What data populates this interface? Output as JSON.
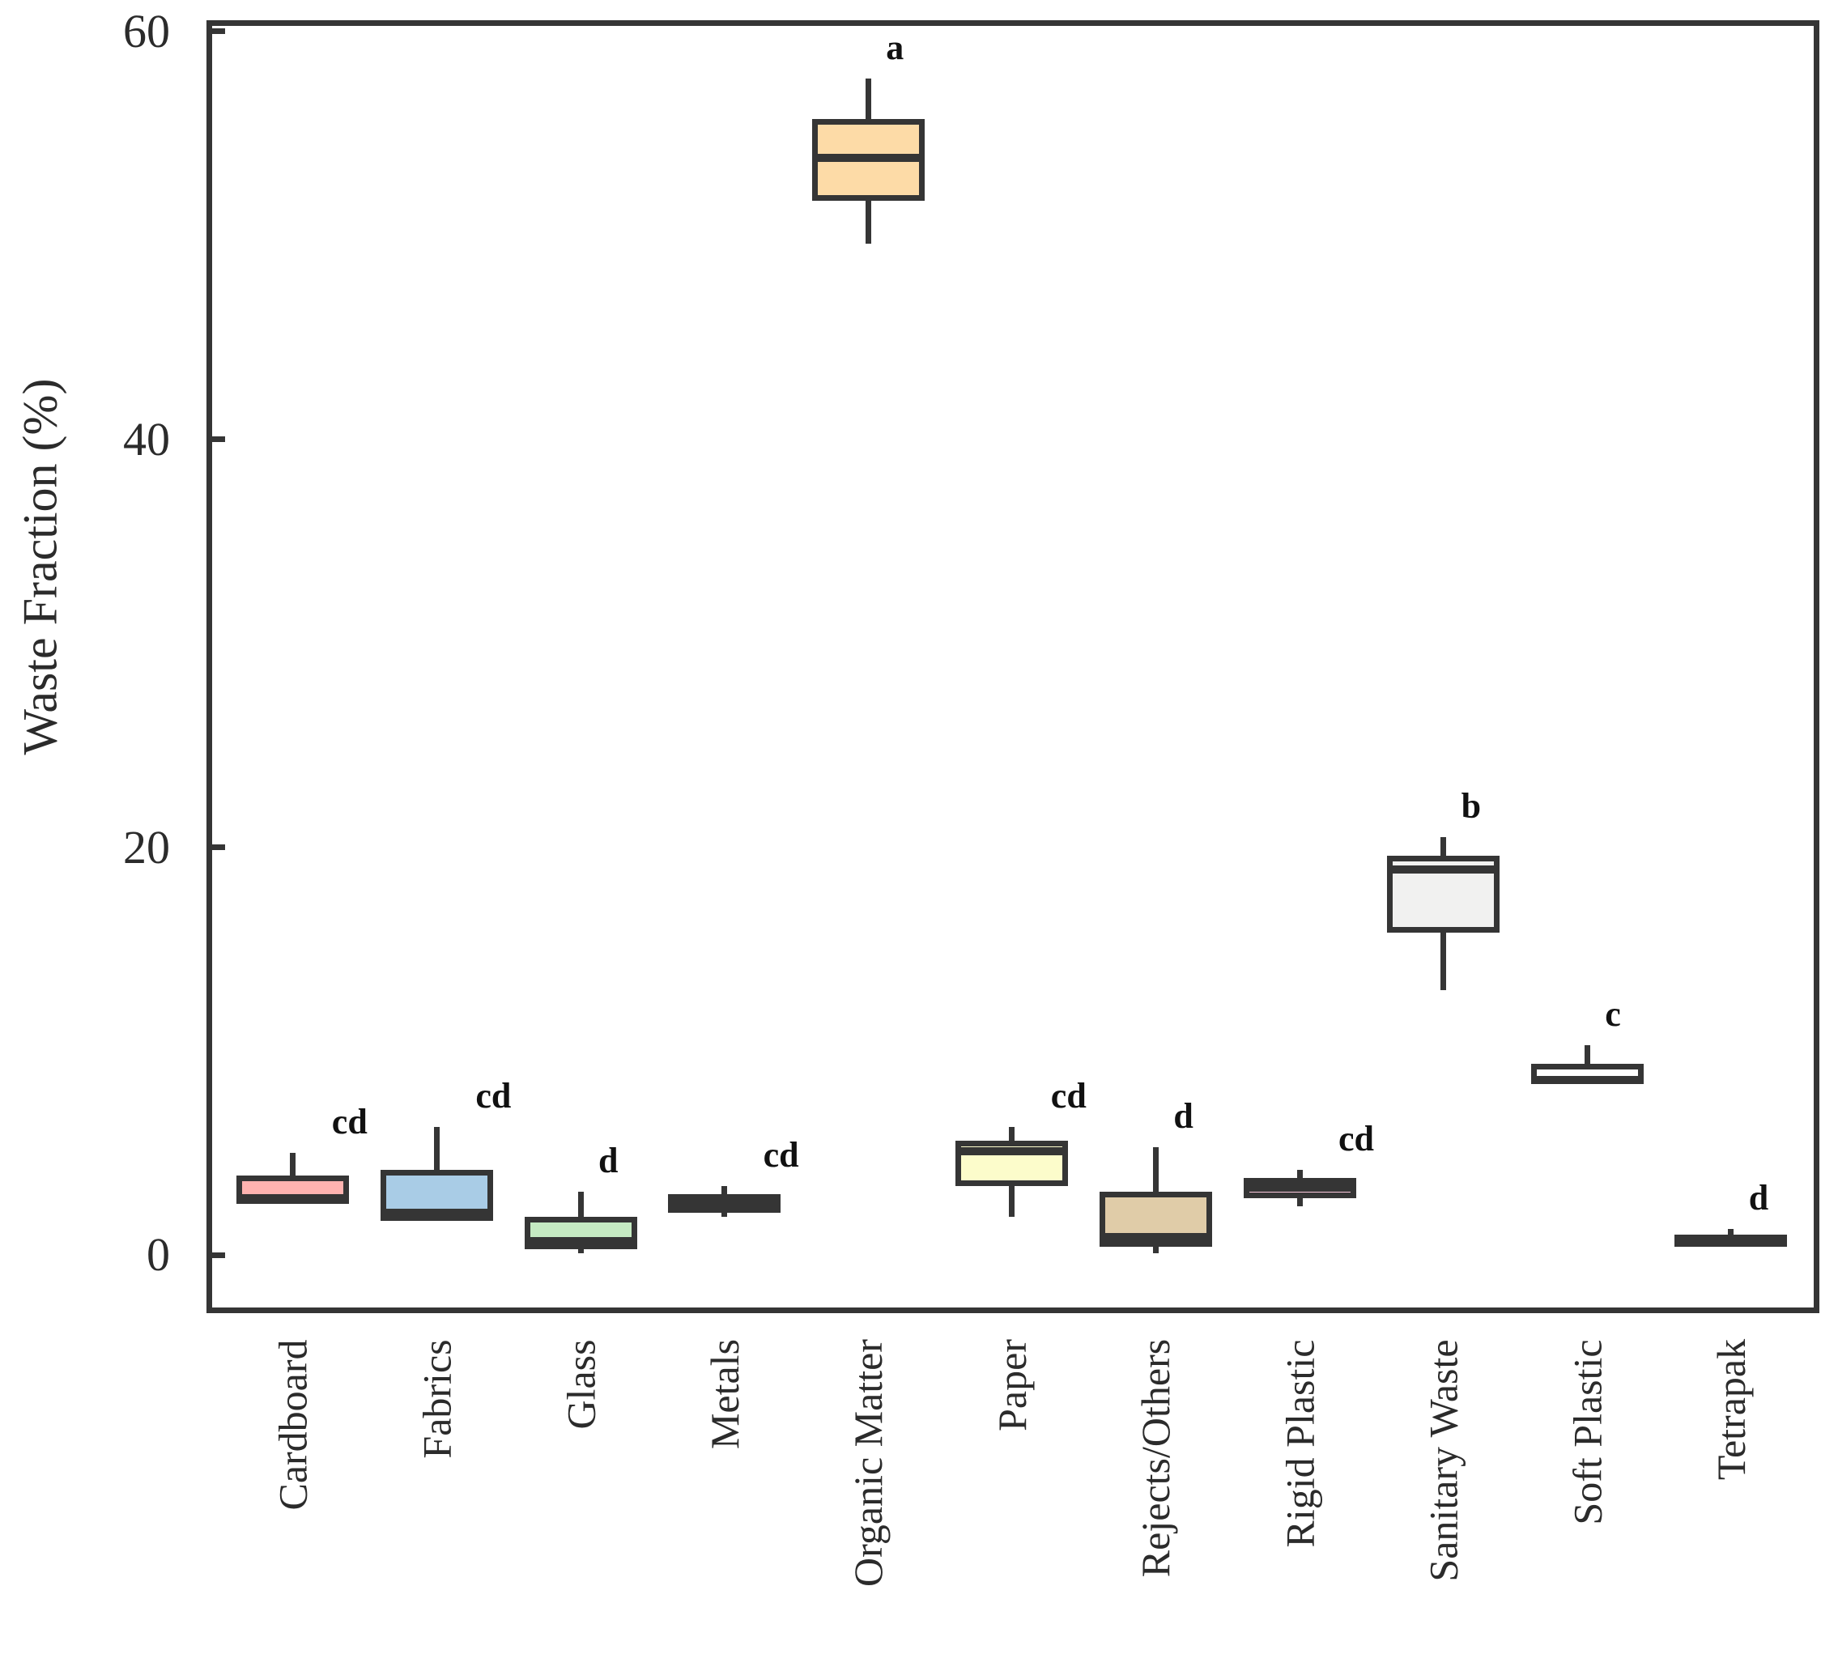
{
  "figure": {
    "ylabel": "Waste Fraction (%)",
    "background_color": "#ffffff",
    "line_color": "#353535"
  },
  "chart_data": {
    "type": "boxplot",
    "title": "",
    "xlabel": "",
    "ylabel": "Waste Fraction (%)",
    "ylim": [
      -2.84,
      60.55
    ],
    "yticks": [
      0,
      20,
      40,
      60
    ],
    "grid": false,
    "legend": "none",
    "x_tick_rotation": 90,
    "categories": [
      "Cardboard",
      "Fabrics",
      "Glass",
      "Metals",
      "Organic Matter",
      "Paper",
      "Rejects/Others",
      "Rigid Plastic",
      "Sanitary Waste",
      "Soft Plastic",
      "Tetrapak"
    ],
    "series": [
      {
        "name": "Cardboard",
        "significance_letter": "cd",
        "fill": "#FFB3B0",
        "whisker_low": 2.5,
        "q1": 2.5,
        "median": 2.8,
        "q3": 3.9,
        "whisker_high": 5.0
      },
      {
        "name": "Fabrics",
        "significance_letter": "cd",
        "fill": "#A9CCE6",
        "whisker_low": 1.7,
        "q1": 1.7,
        "median": 2.1,
        "q3": 4.2,
        "whisker_high": 6.3
      },
      {
        "name": "Glass",
        "significance_letter": "d",
        "fill": "#C5EAC2",
        "whisker_low": 0.1,
        "q1": 0.3,
        "median": 0.7,
        "q3": 1.9,
        "whisker_high": 3.1
      },
      {
        "name": "Metals",
        "significance_letter": "cd",
        "fill": "#E3C6E3",
        "whisker_low": 1.9,
        "q1": 2.1,
        "median": 2.5,
        "q3": 3.0,
        "whisker_high": 3.4
      },
      {
        "name": "Organic Matter",
        "significance_letter": "a",
        "fill": "#FDDBA7",
        "whisker_low": 49.6,
        "q1": 51.7,
        "median": 53.8,
        "q3": 55.7,
        "whisker_high": 57.7
      },
      {
        "name": "Paper",
        "significance_letter": "cd",
        "fill": "#FCFCCB",
        "whisker_low": 1.9,
        "q1": 3.4,
        "median": 5.1,
        "q3": 5.6,
        "whisker_high": 6.3
      },
      {
        "name": "Rejects/Others",
        "significance_letter": "d",
        "fill": "#E0CCA8",
        "whisker_low": 0.1,
        "q1": 0.4,
        "median": 0.9,
        "q3": 3.1,
        "whisker_high": 5.3
      },
      {
        "name": "Rigid Plastic",
        "significance_letter": "cd",
        "fill": "#FBC9DD",
        "whisker_low": 2.4,
        "q1": 2.8,
        "median": 3.3,
        "q3": 3.8,
        "whisker_high": 4.2
      },
      {
        "name": "Sanitary Waste",
        "significance_letter": "b",
        "fill": "#F1F1F0",
        "whisker_low": 13.0,
        "q1": 15.8,
        "median": 18.9,
        "q3": 19.6,
        "whisker_high": 20.5
      },
      {
        "name": "Soft Plastic",
        "significance_letter": "c",
        "fill": "#FEFEFE",
        "whisker_low": 8.4,
        "q1": 8.4,
        "median": 8.6,
        "q3": 9.4,
        "whisker_high": 10.3
      },
      {
        "name": "Tetrapak",
        "significance_letter": "d",
        "fill": "#333333",
        "whisker_low": 0.4,
        "q1": 0.4,
        "median": 0.7,
        "q3": 1.0,
        "whisker_high": 1.3
      }
    ]
  }
}
